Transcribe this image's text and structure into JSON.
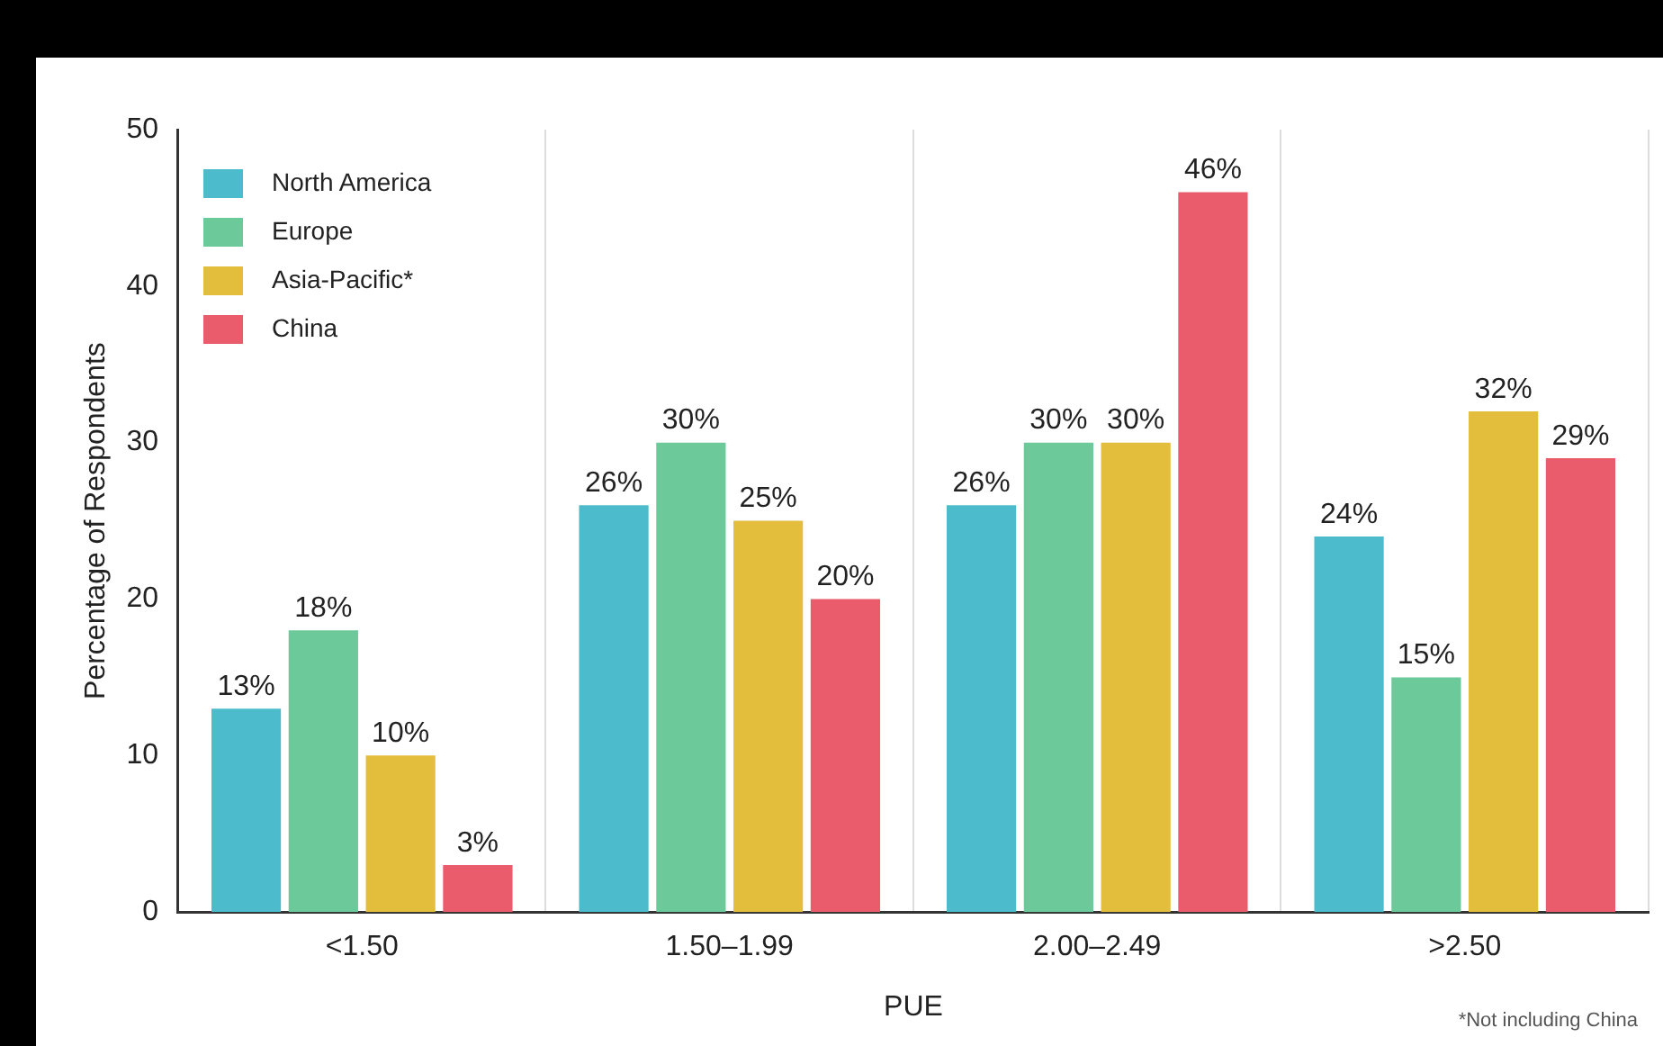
{
  "chart_data": {
    "type": "bar",
    "xlabel": "PUE",
    "ylabel": "Percentage of Respondents",
    "categories": [
      "<1.50",
      "1.50–1.99",
      "2.00–2.49",
      ">2.50"
    ],
    "series": [
      {
        "name": "North America",
        "color": "#4cbccc",
        "values": [
          13,
          26,
          26,
          24
        ],
        "value_labels": [
          "13%",
          "26%",
          "26%",
          "24%"
        ]
      },
      {
        "name": "Europe",
        "color": "#6cc99a",
        "values": [
          18,
          30,
          30,
          15
        ],
        "value_labels": [
          "18%",
          "30%",
          "30%",
          "15%"
        ]
      },
      {
        "name": "Asia-Pacific*",
        "color": "#e3bd3c",
        "values": [
          10,
          25,
          30,
          32
        ],
        "value_labels": [
          "10%",
          "25%",
          "30%",
          "32%"
        ]
      },
      {
        "name": "China",
        "color": "#ea5b6b",
        "values": [
          3,
          20,
          46,
          29
        ],
        "value_labels": [
          "3%",
          "20%",
          "46%",
          "29%"
        ]
      }
    ],
    "ylim": [
      0,
      50
    ],
    "yticks": [
      0,
      10,
      20,
      30,
      40,
      50
    ],
    "grid": "x",
    "legend": "top left",
    "annotations": [
      "*Not including China"
    ]
  }
}
